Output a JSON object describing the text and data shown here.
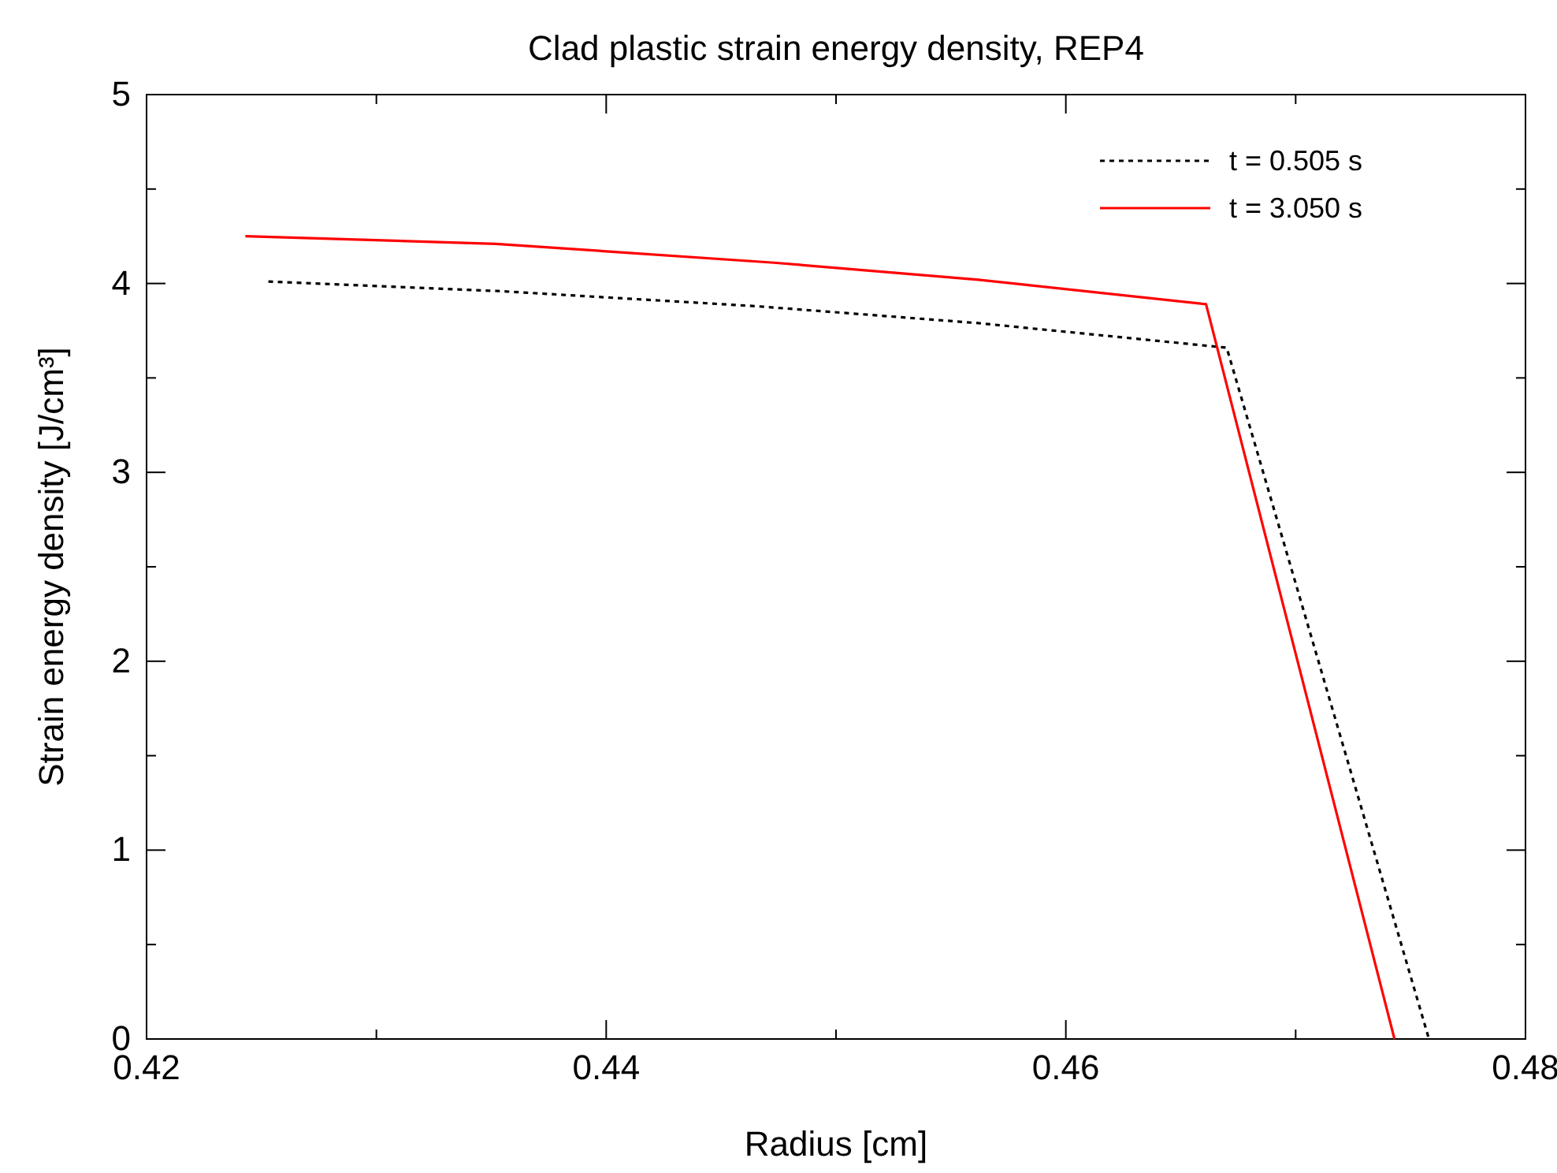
{
  "chart_data": {
    "type": "line",
    "title": "Clad plastic strain energy density, REP4",
    "xlabel": "Radius [cm]",
    "ylabel": "Strain energy density [J/cm³]",
    "xlim": [
      0.42,
      0.48
    ],
    "xticks": [
      0.42,
      0.44,
      0.46,
      0.48
    ],
    "ylim": [
      0,
      5
    ],
    "yticks": [
      0,
      1,
      2,
      3,
      4,
      5
    ],
    "grid": false,
    "legend": "top right",
    "marker": "none",
    "series": [
      {
        "name": "t = 0.505 s",
        "color": "#000000",
        "line_style": "dotted",
        "x": [
          0.4253,
          0.4353,
          0.4465,
          0.4562,
          0.467,
          0.4758
        ],
        "values": [
          4.01,
          3.96,
          3.88,
          3.79,
          3.66,
          0
        ]
      },
      {
        "name": "t = 3.050 s",
        "color": "#ff0000",
        "line_style": "solid",
        "x": [
          0.4243,
          0.4352,
          0.4473,
          0.4562,
          0.4661,
          0.4743
        ],
        "values": [
          4.25,
          4.21,
          4.11,
          4.02,
          3.89,
          0
        ]
      }
    ]
  }
}
